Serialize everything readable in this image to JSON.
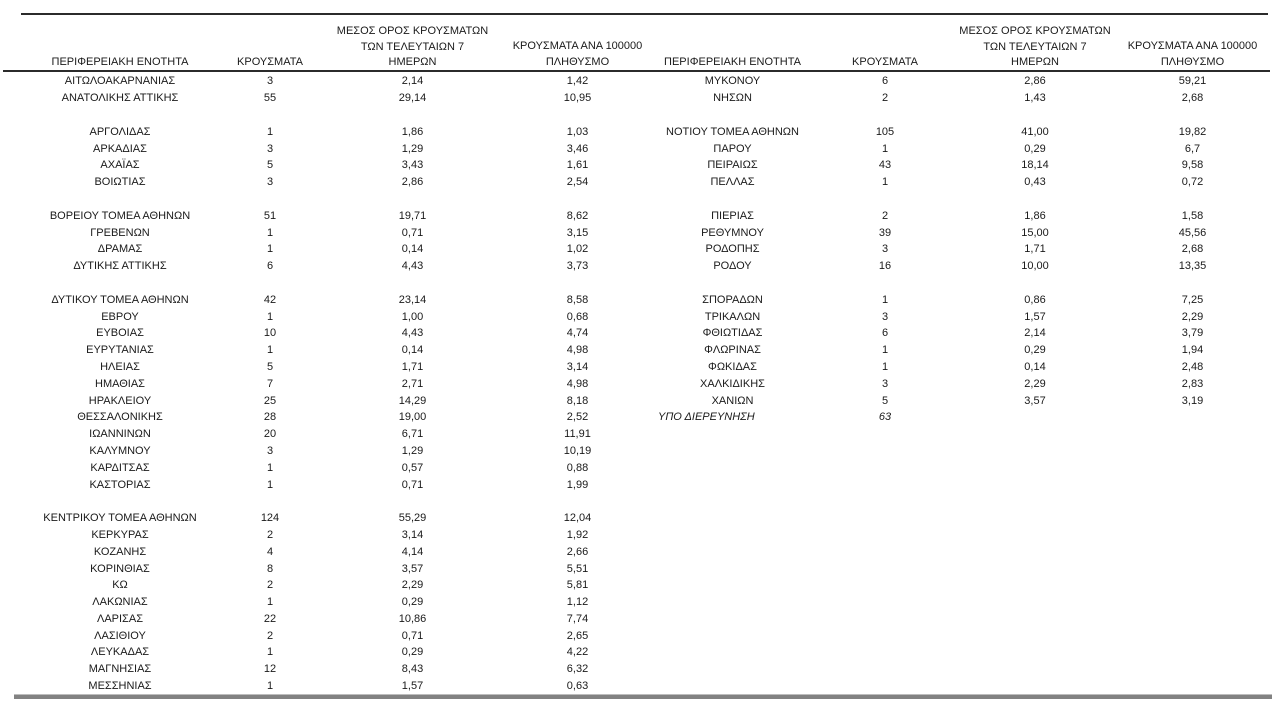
{
  "page": {
    "background_color": "#ffffff",
    "text_color": "#1a1a1a",
    "rule_color": "#2b2b2b",
    "bottom_rule_color": "#828282"
  },
  "headers": {
    "region": "ΠΕΡΙΦΕΡΕΙΑΚΗ ΕΝΟΤΗΤΑ",
    "cases": "ΚΡΟΥΣΜΑΤΑ",
    "avg7_lines": [
      "ΜΕΣΟΣ ΟΡΟΣ ΚΡΟΥΣΜΑΤΩΝ",
      "ΤΩΝ ΤΕΛΕΥΤΑΙΩΝ 7",
      "ΗΜΕΡΩΝ"
    ],
    "per100k_lines": [
      "ΚΡΟΥΣΜΑΤΑ ΑΝΑ 100000",
      "ΠΛΗΘΥΣΜΟ"
    ]
  },
  "left_table": {
    "rows": [
      {
        "name": "ΑΙΤΩΛΟΑΚΑΡΝΑΝΙΑΣ",
        "cases": "3",
        "avg7": "2,14",
        "per100k": "1,42"
      },
      {
        "name": "ΑΝΑΤΟΛΙΚΗΣ ΑΤΤΙΚΗΣ",
        "cases": "55",
        "avg7": "29,14",
        "per100k": "10,95"
      },
      {
        "spacer": true
      },
      {
        "name": "ΑΡΓΟΛΙΔΑΣ",
        "cases": "1",
        "avg7": "1,86",
        "per100k": "1,03"
      },
      {
        "name": "ΑΡΚΑΔΙΑΣ",
        "cases": "3",
        "avg7": "1,29",
        "per100k": "3,46"
      },
      {
        "name": "ΑΧΑΪΑΣ",
        "cases": "5",
        "avg7": "3,43",
        "per100k": "1,61"
      },
      {
        "name": "ΒΟΙΩΤΙΑΣ",
        "cases": "3",
        "avg7": "2,86",
        "per100k": "2,54"
      },
      {
        "spacer": true
      },
      {
        "name": "ΒΟΡΕΙΟΥ ΤΟΜΕΑ ΑΘΗΝΩΝ",
        "cases": "51",
        "avg7": "19,71",
        "per100k": "8,62"
      },
      {
        "name": "ΓΡΕΒΕΝΩΝ",
        "cases": "1",
        "avg7": "0,71",
        "per100k": "3,15"
      },
      {
        "name": "ΔΡΑΜΑΣ",
        "cases": "1",
        "avg7": "0,14",
        "per100k": "1,02"
      },
      {
        "name": "ΔΥΤΙΚΗΣ ΑΤΤΙΚΗΣ",
        "cases": "6",
        "avg7": "4,43",
        "per100k": "3,73"
      },
      {
        "spacer": true
      },
      {
        "name": "ΔΥΤΙΚΟΥ ΤΟΜΕΑ ΑΘΗΝΩΝ",
        "cases": "42",
        "avg7": "23,14",
        "per100k": "8,58"
      },
      {
        "name": "ΕΒΡΟΥ",
        "cases": "1",
        "avg7": "1,00",
        "per100k": "0,68"
      },
      {
        "name": "ΕΥΒΟΙΑΣ",
        "cases": "10",
        "avg7": "4,43",
        "per100k": "4,74"
      },
      {
        "name": "ΕΥΡΥΤΑΝΙΑΣ",
        "cases": "1",
        "avg7": "0,14",
        "per100k": "4,98"
      },
      {
        "name": "ΗΛΕΙΑΣ",
        "cases": "5",
        "avg7": "1,71",
        "per100k": "3,14"
      },
      {
        "name": "ΗΜΑΘΙΑΣ",
        "cases": "7",
        "avg7": "2,71",
        "per100k": "4,98"
      },
      {
        "name": "ΗΡΑΚΛΕΙΟΥ",
        "cases": "25",
        "avg7": "14,29",
        "per100k": "8,18"
      },
      {
        "name": "ΘΕΣΣΑΛΟΝΙΚΗΣ",
        "cases": "28",
        "avg7": "19,00",
        "per100k": "2,52"
      },
      {
        "name": "ΙΩΑΝΝΙΝΩΝ",
        "cases": "20",
        "avg7": "6,71",
        "per100k": "11,91"
      },
      {
        "name": "ΚΑΛΥΜΝΟΥ",
        "cases": "3",
        "avg7": "1,29",
        "per100k": "10,19"
      },
      {
        "name": "ΚΑΡΔΙΤΣΑΣ",
        "cases": "1",
        "avg7": "0,57",
        "per100k": "0,88"
      },
      {
        "name": "ΚΑΣΤΟΡΙΑΣ",
        "cases": "1",
        "avg7": "0,71",
        "per100k": "1,99"
      },
      {
        "spacer": true
      },
      {
        "name": "ΚΕΝΤΡΙΚΟΥ ΤΟΜΕΑ ΑΘΗΝΩΝ",
        "cases": "124",
        "avg7": "55,29",
        "per100k": "12,04"
      },
      {
        "name": "ΚΕΡΚΥΡΑΣ",
        "cases": "2",
        "avg7": "3,14",
        "per100k": "1,92"
      },
      {
        "name": "ΚΟΖΑΝΗΣ",
        "cases": "4",
        "avg7": "4,14",
        "per100k": "2,66"
      },
      {
        "name": "ΚΟΡΙΝΘΙΑΣ",
        "cases": "8",
        "avg7": "3,57",
        "per100k": "5,51"
      },
      {
        "name": "ΚΩ",
        "cases": "2",
        "avg7": "2,29",
        "per100k": "5,81"
      },
      {
        "name": "ΛΑΚΩΝΙΑΣ",
        "cases": "1",
        "avg7": "0,29",
        "per100k": "1,12"
      },
      {
        "name": "ΛΑΡΙΣΑΣ",
        "cases": "22",
        "avg7": "10,86",
        "per100k": "7,74"
      },
      {
        "name": "ΛΑΣΙΘΙΟΥ",
        "cases": "2",
        "avg7": "0,71",
        "per100k": "2,65"
      },
      {
        "name": "ΛΕΥΚΑΔΑΣ",
        "cases": "1",
        "avg7": "0,29",
        "per100k": "4,22"
      },
      {
        "name": "ΜΑΓΝΗΣΙΑΣ",
        "cases": "12",
        "avg7": "8,43",
        "per100k": "6,32"
      },
      {
        "name": "ΜΕΣΣΗΝΙΑΣ",
        "cases": "1",
        "avg7": "1,57",
        "per100k": "0,63"
      }
    ]
  },
  "right_table": {
    "rows": [
      {
        "name": "ΜΥΚΟΝΟΥ",
        "cases": "6",
        "avg7": "2,86",
        "per100k": "59,21"
      },
      {
        "name": "ΝΗΣΩΝ",
        "cases": "2",
        "avg7": "1,43",
        "per100k": "2,68"
      },
      {
        "spacer": true
      },
      {
        "name": "ΝΟΤΙΟΥ ΤΟΜΕΑ ΑΘΗΝΩΝ",
        "cases": "105",
        "avg7": "41,00",
        "per100k": "19,82"
      },
      {
        "name": "ΠΑΡΟΥ",
        "cases": "1",
        "avg7": "0,29",
        "per100k": "6,7"
      },
      {
        "name": "ΠΕΙΡΑΙΩΣ",
        "cases": "43",
        "avg7": "18,14",
        "per100k": "9,58"
      },
      {
        "name": "ΠΕΛΛΑΣ",
        "cases": "1",
        "avg7": "0,43",
        "per100k": "0,72"
      },
      {
        "spacer": true
      },
      {
        "name": "ΠΙΕΡΙΑΣ",
        "cases": "2",
        "avg7": "1,86",
        "per100k": "1,58"
      },
      {
        "name": "ΡΕΘΥΜΝΟΥ",
        "cases": "39",
        "avg7": "15,00",
        "per100k": "45,56"
      },
      {
        "name": "ΡΟΔΟΠΗΣ",
        "cases": "3",
        "avg7": "1,71",
        "per100k": "2,68"
      },
      {
        "name": "ΡΟΔΟΥ",
        "cases": "16",
        "avg7": "10,00",
        "per100k": "13,35"
      },
      {
        "spacer": true
      },
      {
        "name": "ΣΠΟΡΑΔΩΝ",
        "cases": "1",
        "avg7": "0,86",
        "per100k": "7,25"
      },
      {
        "name": "ΤΡΙΚΑΛΩΝ",
        "cases": "3",
        "avg7": "1,57",
        "per100k": "2,29"
      },
      {
        "name": "ΦΘΙΩΤΙΔΑΣ",
        "cases": "6",
        "avg7": "2,14",
        "per100k": "3,79"
      },
      {
        "name": "ΦΛΩΡΙΝΑΣ",
        "cases": "1",
        "avg7": "0,29",
        "per100k": "1,94"
      },
      {
        "name": "ΦΩΚΙΔΑΣ",
        "cases": "1",
        "avg7": "0,14",
        "per100k": "2,48"
      },
      {
        "name": "ΧΑΛΚΙΔΙΚΗΣ",
        "cases": "3",
        "avg7": "2,29",
        "per100k": "2,83"
      },
      {
        "name": "ΧΑΝΙΩΝ",
        "cases": "5",
        "avg7": "3,57",
        "per100k": "3,19"
      },
      {
        "name": "ΥΠΟ ΔΙΕΡΕΥΝΗΣΗ",
        "cases": "63",
        "avg7": "",
        "per100k": "",
        "italic": true
      }
    ]
  }
}
